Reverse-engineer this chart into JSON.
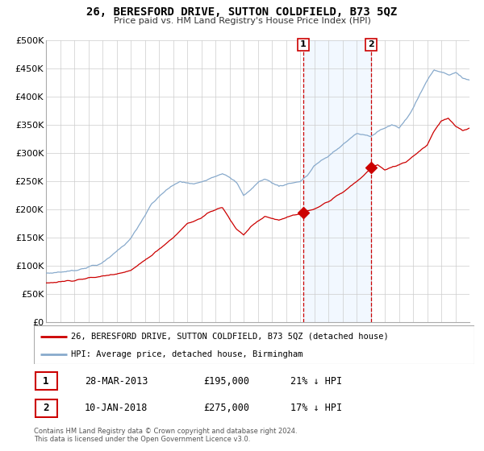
{
  "title": "26, BERESFORD DRIVE, SUTTON COLDFIELD, B73 5QZ",
  "subtitle": "Price paid vs. HM Land Registry's House Price Index (HPI)",
  "sale1_date": 2013.23,
  "sale1_label": "28-MAR-2013",
  "sale1_price": 195000,
  "sale1_pct": "21% ↓ HPI",
  "sale2_date": 2018.03,
  "sale2_label": "10-JAN-2018",
  "sale2_price": 275000,
  "sale2_pct": "17% ↓ HPI",
  "red_line_color": "#cc0000",
  "blue_line_color": "#88aacc",
  "shading_color": "#ddeeff",
  "background_color": "#ffffff",
  "grid_color": "#cccccc",
  "xmin": 1995,
  "xmax": 2025,
  "ymin": 0,
  "ymax": 500000,
  "legend_line1": "26, BERESFORD DRIVE, SUTTON COLDFIELD, B73 5QZ (detached house)",
  "legend_line2": "HPI: Average price, detached house, Birmingham",
  "footer1": "Contains HM Land Registry data © Crown copyright and database right 2024.",
  "footer2": "This data is licensed under the Open Government Licence v3.0."
}
